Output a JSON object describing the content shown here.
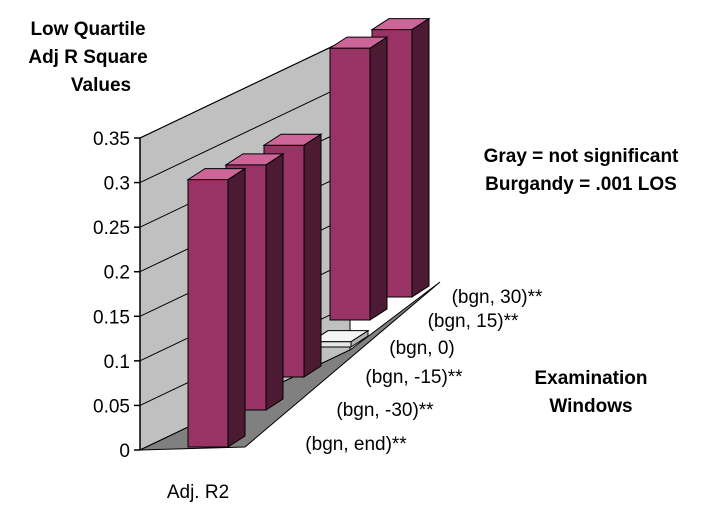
{
  "chart_data": {
    "type": "bar",
    "title": [
      "Low Quartile",
      "Adj R Square",
      "Values"
    ],
    "xlabel": "Adj. R2",
    "zlabel": [
      "Examination",
      "Windows"
    ],
    "ylim": [
      0,
      0.35
    ],
    "yticks": [
      "0",
      "0.05",
      "0.1",
      "0.15",
      "0.2",
      "0.25",
      "0.3",
      "0.35"
    ],
    "categories": [
      "(bgn, end)**",
      "(bgn, -30)**",
      "(bgn, -15)**",
      "(bgn, 0)",
      "(bgn, 15)**",
      "(bgn, 30)**"
    ],
    "values": [
      0.3,
      0.275,
      0.26,
      0.006,
      0.305,
      0.3
    ],
    "significant": [
      true,
      true,
      true,
      false,
      true,
      true
    ],
    "legend_lines": [
      "Gray = not significant",
      "Burgandy = .001 LOS"
    ],
    "colors": {
      "significant_front": "#993366",
      "significant_side": "#4d1a33",
      "significant_top": "#cc6699",
      "not_significant_front": "#e6e6e6",
      "not_significant_side": "#b3b3b3",
      "not_significant_top": "#f5f5f5"
    }
  }
}
